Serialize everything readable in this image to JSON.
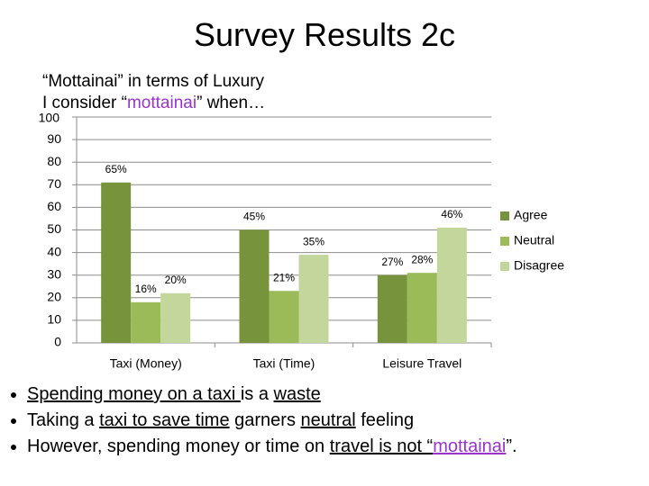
{
  "chart_data": {
    "type": "bar",
    "slide_title": "Survey Results 2c",
    "subtitle": [
      [
        {
          "text": "“Mottainai” in terms of Luxury",
          "color": "#000000"
        }
      ],
      [
        {
          "text": "I consider “",
          "color": "#000000"
        },
        {
          "text": "mottainai",
          "color": "#9933cc"
        },
        {
          "text": "” when…",
          "color": "#000000"
        }
      ]
    ],
    "categories": [
      "Taxi (Money)",
      "Taxi (Time)",
      "Leisure Travel"
    ],
    "series": [
      {
        "name": "Agree",
        "color": "#77933c",
        "values": [
          71,
          50,
          30
        ],
        "percent_labels": [
          "65%",
          "45%",
          "27%"
        ]
      },
      {
        "name": "Neutral",
        "color": "#9bbb59",
        "values": [
          18,
          23,
          31
        ],
        "percent_labels": [
          "16%",
          "21%",
          "28%"
        ]
      },
      {
        "name": "Disagree",
        "color": "#c3d69b",
        "values": [
          22,
          39,
          51
        ],
        "percent_labels": [
          "20%",
          "35%",
          "46%"
        ]
      }
    ],
    "ylim": [
      0,
      100
    ],
    "yticks": [
      0,
      10,
      20,
      30,
      40,
      50,
      60,
      70,
      80,
      90,
      100
    ],
    "grid": true,
    "legend": "right"
  },
  "bullets": [
    [
      {
        "text": "Spending money on a taxi ",
        "underline": true
      },
      {
        "text": "is a "
      },
      {
        "text": "waste",
        "underline": true
      }
    ],
    [
      {
        "text": "Taking a "
      },
      {
        "text": "taxi to save time",
        "underline": true
      },
      {
        "text": " garners "
      },
      {
        "text": "neutral",
        "underline": true
      },
      {
        "text": " feeling"
      }
    ],
    [
      {
        "text": "However, spending money or time on "
      },
      {
        "text": "travel is not “",
        "underline": true
      },
      {
        "text": "mottainai",
        "underline": true,
        "color": "#9933cc"
      },
      {
        "text": "”."
      }
    ]
  ]
}
